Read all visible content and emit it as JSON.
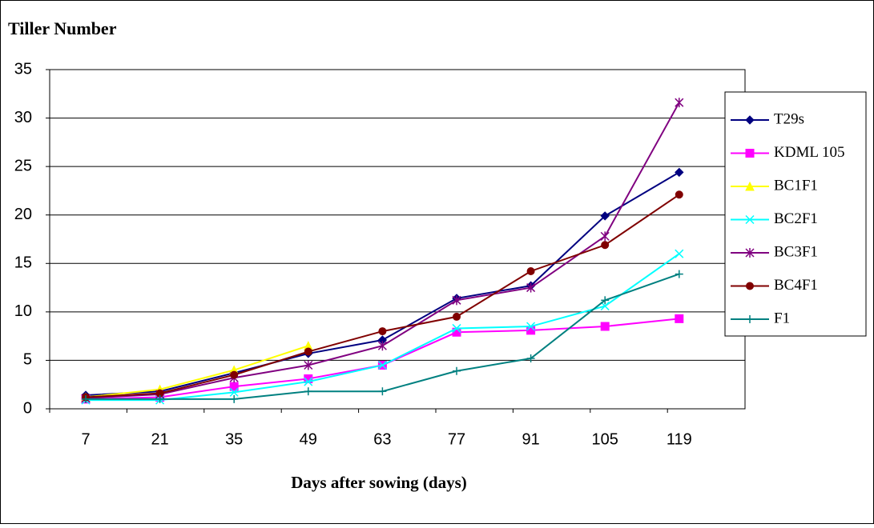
{
  "chart_data": {
    "type": "line",
    "title": "Tiller Number",
    "x_label": "Days after sowing (days)",
    "categories": [
      "7",
      "21",
      "35",
      "49",
      "63",
      "77",
      "91",
      "105",
      "119"
    ],
    "ylim": [
      0,
      35
    ],
    "yticks": [
      0,
      5,
      10,
      15,
      20,
      25,
      30,
      35
    ],
    "grid": true,
    "legend": "right",
    "series": [
      {
        "name": "T29s",
        "color": "#000080",
        "marker": "diamond",
        "values": [
          1.4,
          1.8,
          3.7,
          5.7,
          7.1,
          11.4,
          12.7,
          19.9,
          24.4
        ]
      },
      {
        "name": "KDML 105",
        "color": "#ff00ff",
        "marker": "square",
        "values": [
          1.0,
          1.2,
          2.3,
          3.1,
          4.5,
          7.9,
          8.1,
          8.5,
          9.3
        ]
      },
      {
        "name": "BC1F1",
        "color": "#ffff00",
        "marker": "triangle",
        "values": [
          1.2,
          2.0,
          4.0,
          6.5,
          null,
          null,
          null,
          null,
          null
        ]
      },
      {
        "name": "BC2F1",
        "color": "#00ffff",
        "marker": "x",
        "values": [
          0.9,
          0.9,
          1.7,
          2.8,
          4.5,
          8.3,
          8.5,
          10.6,
          16.0
        ]
      },
      {
        "name": "BC3F1",
        "color": "#800080",
        "marker": "star",
        "values": [
          1.1,
          1.5,
          3.2,
          4.5,
          6.5,
          11.2,
          12.5,
          17.8,
          31.6
        ]
      },
      {
        "name": "BC4F1",
        "color": "#800000",
        "marker": "circle",
        "values": [
          1.2,
          1.6,
          3.5,
          5.9,
          8.0,
          9.5,
          14.2,
          16.9,
          22.1
        ]
      },
      {
        "name": "F1",
        "color": "#008080",
        "marker": "plus",
        "values": [
          1.0,
          1.0,
          1.0,
          1.8,
          1.8,
          3.9,
          5.2,
          11.2,
          13.9
        ]
      }
    ]
  }
}
